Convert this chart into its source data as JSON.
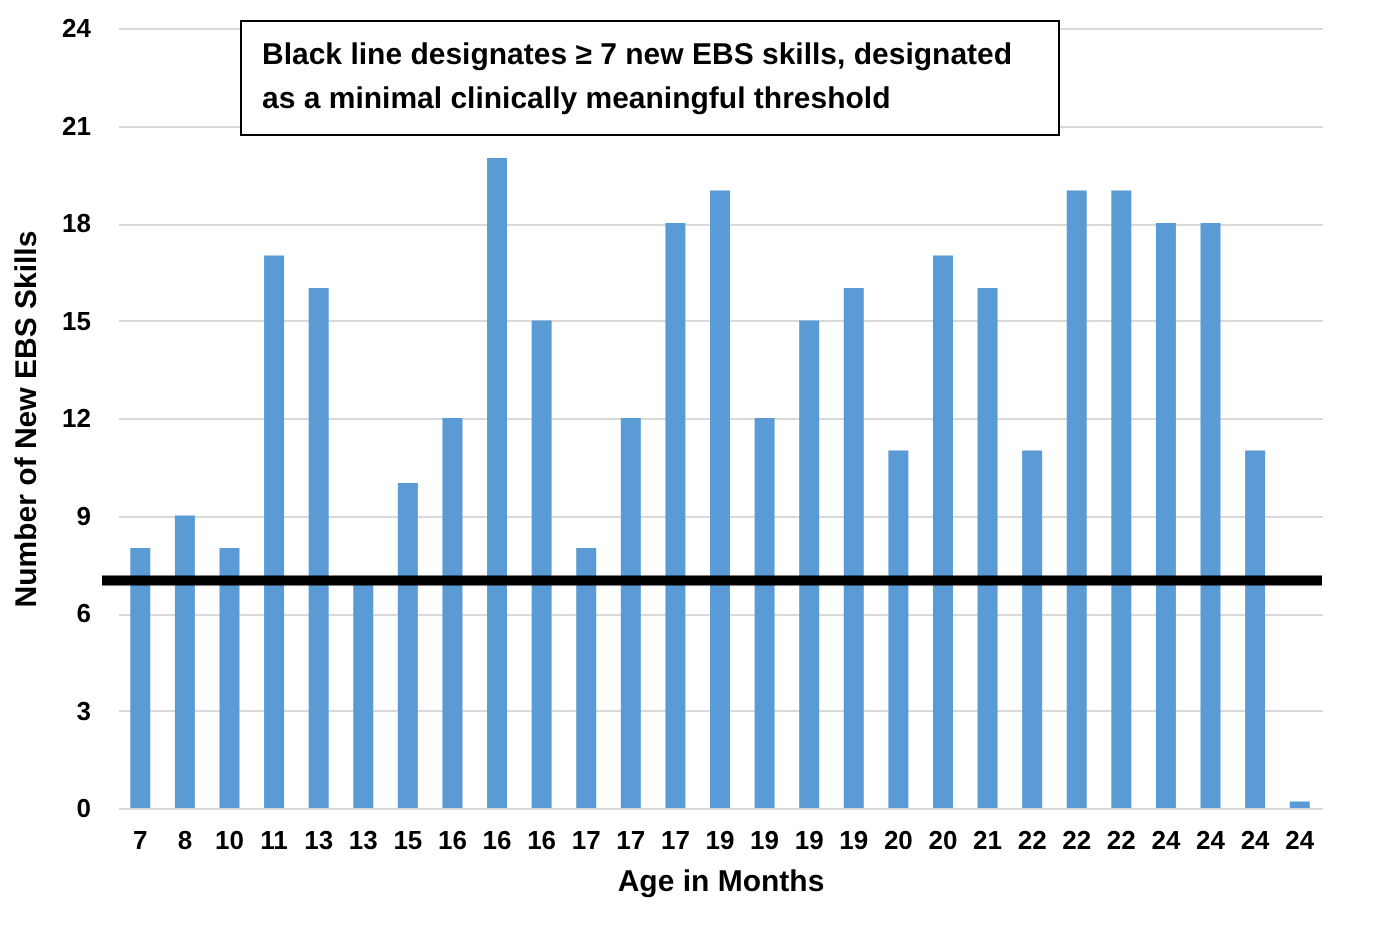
{
  "chart_data": {
    "type": "bar",
    "xlabel": "Age in Months",
    "ylabel": "Number of New EBS Skills",
    "annotations": [
      "Black line designates ≥ 7 new EBS skills, designated as a minimal clinically meaningful threshold"
    ],
    "categories": [
      "7",
      "8",
      "10",
      "11",
      "13",
      "13",
      "15",
      "16",
      "16",
      "16",
      "17",
      "17",
      "17",
      "19",
      "19",
      "19",
      "19",
      "20",
      "20",
      "21",
      "22",
      "22",
      "22",
      "24",
      "24",
      "24",
      "24"
    ],
    "values": [
      8,
      9,
      8,
      17,
      16,
      7,
      10,
      12,
      20,
      15,
      8,
      12,
      18,
      19,
      12,
      15,
      16,
      11,
      17,
      16,
      11,
      19,
      19,
      18,
      18,
      11,
      0.2
    ],
    "color": "#5b9bd5",
    "ylim": [
      0,
      24
    ],
    "yticks": [
      0,
      3,
      6,
      9,
      12,
      15,
      18,
      21,
      24
    ],
    "grid": "y",
    "ref_lines": [
      {
        "axis": "y",
        "value": 7,
        "color": "#000000"
      }
    ]
  }
}
